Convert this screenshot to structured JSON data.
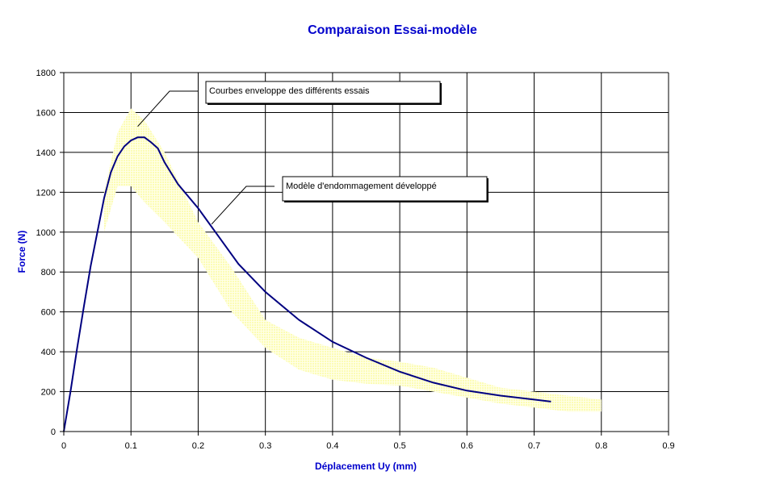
{
  "chart_data": {
    "type": "line",
    "title": "Comparaison Essai-modèle",
    "xlabel": "Déplacement Uy (mm)",
    "ylabel": "Force (N)",
    "xlim": [
      0,
      0.9
    ],
    "ylim": [
      0,
      1800
    ],
    "xticks": [
      0,
      0.1,
      0.2,
      0.3,
      0.4,
      0.5,
      0.6,
      0.7,
      0.8,
      0.9
    ],
    "xtick_labels": [
      "0",
      "0.1",
      "0.2",
      "0.3",
      "0.4",
      "0.5",
      "0.6",
      "0.7",
      "0.8",
      "0.9"
    ],
    "yticks": [
      0,
      200,
      400,
      600,
      800,
      1000,
      1200,
      1400,
      1600,
      1800
    ],
    "ytick_labels": [
      "0",
      "200",
      "400",
      "600",
      "800",
      "1000",
      "1200",
      "1400",
      "1600",
      "1800"
    ],
    "grid": true,
    "colors": {
      "model": "#000080",
      "envelope": "#ffffc0",
      "title": "#0000cc"
    },
    "series": [
      {
        "kind": "line",
        "x": [
          0,
          0.01,
          0.02,
          0.03,
          0.04,
          0.05,
          0.06,
          0.07,
          0.08,
          0.09,
          0.1,
          0.11,
          0.12,
          0.13,
          0.14,
          0.15,
          0.17,
          0.2,
          0.23,
          0.26,
          0.3,
          0.35,
          0.4,
          0.45,
          0.5,
          0.55,
          0.6,
          0.65,
          0.7,
          0.725
        ],
        "y": [
          0,
          200,
          420,
          630,
          830,
          1000,
          1170,
          1300,
          1380,
          1430,
          1460,
          1475,
          1475,
          1450,
          1420,
          1350,
          1240,
          1120,
          980,
          840,
          700,
          560,
          450,
          370,
          300,
          245,
          205,
          180,
          160,
          150
        ]
      },
      {
        "kind": "band",
        "x": [
          0.06,
          0.08,
          0.1,
          0.12,
          0.15,
          0.2,
          0.25,
          0.3,
          0.35,
          0.4,
          0.45,
          0.5,
          0.55,
          0.6,
          0.65,
          0.7,
          0.75,
          0.8
        ],
        "upper": [
          1200,
          1500,
          1620,
          1560,
          1400,
          1050,
          820,
          560,
          470,
          420,
          370,
          350,
          320,
          270,
          220,
          200,
          180,
          160
        ],
        "lower": [
          1000,
          1230,
          1230,
          1150,
          1050,
          870,
          600,
          420,
          310,
          260,
          240,
          230,
          200,
          170,
          140,
          120,
          100,
          100
        ]
      }
    ],
    "annotations": [
      {
        "text": "Courbes enveloppe des différents essais",
        "target": [
          0.11,
          1530
        ]
      },
      {
        "text": "Modèle d'endommagement développé",
        "target": [
          0.22,
          1040
        ]
      }
    ]
  }
}
